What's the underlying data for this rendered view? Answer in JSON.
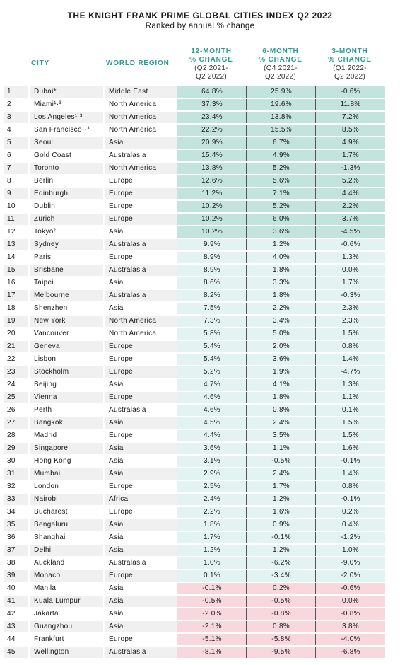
{
  "title": "THE KNIGHT FRANK PRIME GLOBAL CITIES INDEX Q2 2022",
  "subtitle": "Ranked by annual % change",
  "headers": {
    "city": "CITY",
    "region": "WORLD REGION",
    "col1_line1": "12-MONTH",
    "col1_line2": "% CHANGE",
    "col1_sub1": "(Q2 2021-",
    "col1_sub2": "Q2 2022)",
    "col2_line1": "6-MONTH",
    "col2_line2": "% CHANGE",
    "col2_sub1": "(Q4 2021-",
    "col2_sub2": "Q2 2022)",
    "col3_line1": "3-MONTH",
    "col3_line2": "% CHANGE",
    "col3_sub1": "(Q1 2022-",
    "col3_sub2": "Q2 2022)"
  },
  "colors": {
    "accent": "#2b9c94",
    "band_top": "#c3e3dd",
    "band_mid": "#e3f3f1",
    "band_low": "#f8d7dd"
  },
  "chart_data": {
    "type": "table",
    "title": "THE KNIGHT FRANK PRIME GLOBAL CITIES INDEX Q2 2022",
    "subtitle": "Ranked by annual % change",
    "columns": [
      "",
      "CITY",
      "WORLD REGION",
      "12-MONTH % CHANGE (Q2 2021-Q2 2022)",
      "6-MONTH % CHANGE (Q4 2021-Q2 2022)",
      "3-MONTH % CHANGE (Q1 2022-Q2 2022)"
    ],
    "rows": [
      {
        "rank": "1",
        "city": "Dubai*",
        "region": "Middle East",
        "m12": "64.8%",
        "m6": "25.9%",
        "m3": "-0.6%",
        "band": "top"
      },
      {
        "rank": "2",
        "city": "Miami¹·³",
        "region": "North America",
        "m12": "37.3%",
        "m6": "19.6%",
        "m3": "11.8%",
        "band": "top"
      },
      {
        "rank": "3",
        "city": "Los Angeles¹·³",
        "region": "North America",
        "m12": "23.4%",
        "m6": "13.8%",
        "m3": "7.2%",
        "band": "top"
      },
      {
        "rank": "4",
        "city": "San Francisco¹·³",
        "region": "North America",
        "m12": "22.2%",
        "m6": "15.5%",
        "m3": "8.5%",
        "band": "top"
      },
      {
        "rank": "5",
        "city": "Seoul",
        "region": "Asia",
        "m12": "20.9%",
        "m6": "6.7%",
        "m3": "4.9%",
        "band": "top"
      },
      {
        "rank": "6",
        "city": "Gold Coast",
        "region": "Australasia",
        "m12": "15.4%",
        "m6": "4.9%",
        "m3": "1.7%",
        "band": "top"
      },
      {
        "rank": "7",
        "city": "Toronto",
        "region": "North America",
        "m12": "13.8%",
        "m6": "5.2%",
        "m3": "-1.3%",
        "band": "top"
      },
      {
        "rank": "8",
        "city": "Berlin",
        "region": "Europe",
        "m12": "12.6%",
        "m6": "5.6%",
        "m3": "5.2%",
        "band": "top"
      },
      {
        "rank": "9",
        "city": "Edinburgh",
        "region": "Europe",
        "m12": "11.2%",
        "m6": "7.1%",
        "m3": "4.4%",
        "band": "top"
      },
      {
        "rank": "10",
        "city": "Dublin",
        "region": "Europe",
        "m12": "10.2%",
        "m6": "5.2%",
        "m3": "2.2%",
        "band": "top"
      },
      {
        "rank": "11",
        "city": "Zurich",
        "region": "Europe",
        "m12": "10.2%",
        "m6": "6.0%",
        "m3": "3.7%",
        "band": "top"
      },
      {
        "rank": "12",
        "city": "Tokyo²",
        "region": "Asia",
        "m12": "10.2%",
        "m6": "3.6%",
        "m3": "-4.5%",
        "band": "top"
      },
      {
        "rank": "13",
        "city": "Sydney",
        "region": "Australasia",
        "m12": "9.9%",
        "m6": "1.2%",
        "m3": "-0.6%",
        "band": "mid"
      },
      {
        "rank": "14",
        "city": "Paris",
        "region": "Europe",
        "m12": "8.9%",
        "m6": "4.0%",
        "m3": "1.3%",
        "band": "mid"
      },
      {
        "rank": "15",
        "city": "Brisbane",
        "region": "Australasia",
        "m12": "8.9%",
        "m6": "1.8%",
        "m3": "0.0%",
        "band": "mid"
      },
      {
        "rank": "16",
        "city": "Taipei",
        "region": "Asia",
        "m12": "8.6%",
        "m6": "3.3%",
        "m3": "1.7%",
        "band": "mid"
      },
      {
        "rank": "17",
        "city": "Melbourne",
        "region": "Australasia",
        "m12": "8.2%",
        "m6": "1.8%",
        "m3": "-0.3%",
        "band": "mid"
      },
      {
        "rank": "18",
        "city": "Shenzhen",
        "region": "Asia",
        "m12": "7.5%",
        "m6": "2.2%",
        "m3": "2.3%",
        "band": "mid"
      },
      {
        "rank": "19",
        "city": "New York",
        "region": "North America",
        "m12": "7.3%",
        "m6": "3.4%",
        "m3": "2.3%",
        "band": "mid"
      },
      {
        "rank": "20",
        "city": "Vancouver",
        "region": "North America",
        "m12": "5.8%",
        "m6": "5.0%",
        "m3": "1.5%",
        "band": "mid"
      },
      {
        "rank": "21",
        "city": "Geneva",
        "region": "Europe",
        "m12": "5.4%",
        "m6": "2.0%",
        "m3": "0.8%",
        "band": "mid"
      },
      {
        "rank": "22",
        "city": "Lisbon",
        "region": "Europe",
        "m12": "5.4%",
        "m6": "3.6%",
        "m3": "1.4%",
        "band": "mid"
      },
      {
        "rank": "23",
        "city": "Stockholm",
        "region": "Europe",
        "m12": "5.2%",
        "m6": "1.9%",
        "m3": "-4.7%",
        "band": "mid"
      },
      {
        "rank": "24",
        "city": "Beijing",
        "region": "Asia",
        "m12": "4.7%",
        "m6": "4.1%",
        "m3": "1.3%",
        "band": "mid"
      },
      {
        "rank": "25",
        "city": "Vienna",
        "region": "Europe",
        "m12": "4.6%",
        "m6": "1.8%",
        "m3": "1.1%",
        "band": "mid"
      },
      {
        "rank": "26",
        "city": "Perth",
        "region": "Australasia",
        "m12": "4.6%",
        "m6": "0.8%",
        "m3": "0.1%",
        "band": "mid"
      },
      {
        "rank": "27",
        "city": "Bangkok",
        "region": "Asia",
        "m12": "4.5%",
        "m6": "2.4%",
        "m3": "1.5%",
        "band": "mid"
      },
      {
        "rank": "28",
        "city": "Madrid",
        "region": "Europe",
        "m12": "4.4%",
        "m6": "3.5%",
        "m3": "1.5%",
        "band": "mid"
      },
      {
        "rank": "29",
        "city": "Singapore",
        "region": "Asia",
        "m12": "3.6%",
        "m6": "1.1%",
        "m3": "1.6%",
        "band": "mid"
      },
      {
        "rank": "30",
        "city": "Hong Kong",
        "region": "Asia",
        "m12": "3.1%",
        "m6": "-0.5%",
        "m3": "-0.1%",
        "band": "mid"
      },
      {
        "rank": "31",
        "city": "Mumbai",
        "region": "Asia",
        "m12": "2.9%",
        "m6": "2.4%",
        "m3": "1.4%",
        "band": "mid"
      },
      {
        "rank": "32",
        "city": "London",
        "region": "Europe",
        "m12": "2.5%",
        "m6": "1.7%",
        "m3": "0.8%",
        "band": "mid"
      },
      {
        "rank": "33",
        "city": "Nairobi",
        "region": "Africa",
        "m12": "2.4%",
        "m6": "1.2%",
        "m3": "-0.1%",
        "band": "mid"
      },
      {
        "rank": "34",
        "city": "Bucharest",
        "region": "Europe",
        "m12": "2.2%",
        "m6": "1.6%",
        "m3": "0.2%",
        "band": "mid"
      },
      {
        "rank": "35",
        "city": "Bengaluru",
        "region": "Asia",
        "m12": "1.8%",
        "m6": "0.9%",
        "m3": "0.4%",
        "band": "mid"
      },
      {
        "rank": "36",
        "city": "Shanghai",
        "region": "Asia",
        "m12": "1.7%",
        "m6": "-0.1%",
        "m3": "-1.2%",
        "band": "mid"
      },
      {
        "rank": "37",
        "city": "Delhi",
        "region": "Asia",
        "m12": "1.2%",
        "m6": "1.2%",
        "m3": "1.0%",
        "band": "mid"
      },
      {
        "rank": "38",
        "city": "Auckland",
        "region": "Australasia",
        "m12": "1.0%",
        "m6": "-6.2%",
        "m3": "-9.0%",
        "band": "mid"
      },
      {
        "rank": "39",
        "city": "Monaco",
        "region": "Europe",
        "m12": "0.1%",
        "m6": "-3.4%",
        "m3": "-2.0%",
        "band": "mid"
      },
      {
        "rank": "40",
        "city": "Manila",
        "region": "Asia",
        "m12": "-0.1%",
        "m6": "0.2%",
        "m3": "-0.6%",
        "band": "low"
      },
      {
        "rank": "41",
        "city": "Kuala Lumpur",
        "region": "Asia",
        "m12": "-0.5%",
        "m6": "-0.5%",
        "m3": "0.0%",
        "band": "low"
      },
      {
        "rank": "42",
        "city": "Jakarta",
        "region": "Asia",
        "m12": "-2.0%",
        "m6": "-0.8%",
        "m3": "-0.8%",
        "band": "low"
      },
      {
        "rank": "43",
        "city": "Guangzhou",
        "region": "Asia",
        "m12": "-2.1%",
        "m6": "0.8%",
        "m3": "3.8%",
        "band": "low"
      },
      {
        "rank": "44",
        "city": "Frankfurt",
        "region": "Europe",
        "m12": "-5.1%",
        "m6": "-5.8%",
        "m3": "-4.0%",
        "band": "low"
      },
      {
        "rank": "45",
        "city": "Wellington",
        "region": "Australasia",
        "m12": "-8.1%",
        "m6": "-9.5%",
        "m3": "-6.8%",
        "band": "low"
      }
    ]
  }
}
